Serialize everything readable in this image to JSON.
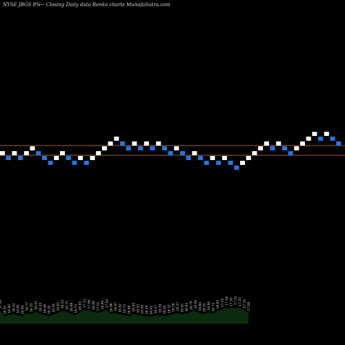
{
  "header": {
    "text": "NYSE JBGS 8%~  Closing Daily data  Renko  charts MunafaSutra.com"
  },
  "chart_data": {
    "type": "renko",
    "title": "",
    "up_color": "#ffffff",
    "down_color": "#1e78e6",
    "line_color": "#a0642d",
    "volume_color": "#0c2a0c",
    "brick_size": 1,
    "bricks": [
      {
        "level": 0,
        "dir": "up"
      },
      {
        "level": -1,
        "dir": "down"
      },
      {
        "level": 0,
        "dir": "up"
      },
      {
        "level": -1,
        "dir": "down"
      },
      {
        "level": 0,
        "dir": "up"
      },
      {
        "level": 1,
        "dir": "up"
      },
      {
        "level": 0,
        "dir": "down"
      },
      {
        "level": -1,
        "dir": "down"
      },
      {
        "level": -2,
        "dir": "down"
      },
      {
        "level": -1,
        "dir": "up"
      },
      {
        "level": 0,
        "dir": "up"
      },
      {
        "level": -1,
        "dir": "down"
      },
      {
        "level": -2,
        "dir": "down"
      },
      {
        "level": -1,
        "dir": "up"
      },
      {
        "level": -2,
        "dir": "down"
      },
      {
        "level": -1,
        "dir": "up"
      },
      {
        "level": 0,
        "dir": "up"
      },
      {
        "level": 1,
        "dir": "up"
      },
      {
        "level": 2,
        "dir": "up"
      },
      {
        "level": 3,
        "dir": "up"
      },
      {
        "level": 2,
        "dir": "down"
      },
      {
        "level": 1,
        "dir": "down"
      },
      {
        "level": 2,
        "dir": "up"
      },
      {
        "level": 1,
        "dir": "down"
      },
      {
        "level": 2,
        "dir": "up"
      },
      {
        "level": 1,
        "dir": "down"
      },
      {
        "level": 2,
        "dir": "up"
      },
      {
        "level": 1,
        "dir": "down"
      },
      {
        "level": 0,
        "dir": "down"
      },
      {
        "level": 1,
        "dir": "up"
      },
      {
        "level": 0,
        "dir": "down"
      },
      {
        "level": -1,
        "dir": "down"
      },
      {
        "level": 0,
        "dir": "up"
      },
      {
        "level": -1,
        "dir": "down"
      },
      {
        "level": -2,
        "dir": "down"
      },
      {
        "level": -1,
        "dir": "up"
      },
      {
        "level": -2,
        "dir": "down"
      },
      {
        "level": -1,
        "dir": "up"
      },
      {
        "level": -2,
        "dir": "down"
      },
      {
        "level": -3,
        "dir": "down"
      },
      {
        "level": -2,
        "dir": "up"
      },
      {
        "level": -1,
        "dir": "up"
      },
      {
        "level": 0,
        "dir": "up"
      },
      {
        "level": 1,
        "dir": "up"
      },
      {
        "level": 2,
        "dir": "up"
      },
      {
        "level": 1,
        "dir": "down"
      },
      {
        "level": 2,
        "dir": "up"
      },
      {
        "level": 1,
        "dir": "down"
      },
      {
        "level": 0,
        "dir": "down"
      },
      {
        "level": 1,
        "dir": "up"
      },
      {
        "level": 2,
        "dir": "up"
      },
      {
        "level": 3,
        "dir": "up"
      },
      {
        "level": 4,
        "dir": "up"
      },
      {
        "level": 3,
        "dir": "down"
      },
      {
        "level": 4,
        "dir": "up"
      },
      {
        "level": 3,
        "dir": "down"
      },
      {
        "level": 2,
        "dir": "down"
      }
    ],
    "reference_lines": [
      2,
      0
    ],
    "volume": [
      {
        "label": "17.14",
        "v": 0.55
      },
      {
        "label": "16.91",
        "v": 0.3
      },
      {
        "label": "16.80",
        "v": 0.35
      },
      {
        "label": "16.92",
        "v": 0.4
      },
      {
        "label": "16.81",
        "v": 0.35
      },
      {
        "label": "16.64",
        "v": 0.3
      },
      {
        "label": "16.77",
        "v": 0.45
      },
      {
        "label": "16.55",
        "v": 0.4
      },
      {
        "label": "16.42",
        "v": 0.5
      },
      {
        "label": "16.35",
        "v": 0.42
      },
      {
        "label": "16.48",
        "v": 0.35
      },
      {
        "label": "16.30",
        "v": 0.3
      },
      {
        "label": "16.44",
        "v": 0.38
      },
      {
        "label": "16.61",
        "v": 0.45
      },
      {
        "label": "16.52",
        "v": 0.55
      },
      {
        "label": "16.70",
        "v": 0.5
      },
      {
        "label": "16.88",
        "v": 0.42
      },
      {
        "label": "16.73",
        "v": 0.35
      },
      {
        "label": "16.95",
        "v": 0.48
      },
      {
        "label": "17.12",
        "v": 0.6
      },
      {
        "label": "17.06",
        "v": 0.55
      },
      {
        "label": "16.98",
        "v": 0.5
      },
      {
        "label": "17.01",
        "v": 0.45
      },
      {
        "label": "16.90",
        "v": 0.52
      },
      {
        "label": "17.04",
        "v": 0.58
      },
      {
        "label": "16.86",
        "v": 0.4
      },
      {
        "label": "16.97",
        "v": 0.45
      },
      {
        "label": "16.82",
        "v": 0.38
      },
      {
        "label": "16.75",
        "v": 0.35
      },
      {
        "label": "16.68",
        "v": 0.3
      },
      {
        "label": "16.60",
        "v": 0.42
      },
      {
        "label": "16.52",
        "v": 0.36
      },
      {
        "label": "16.58",
        "v": 0.32
      },
      {
        "label": "16.49",
        "v": 0.3
      },
      {
        "label": "16.41",
        "v": 0.28
      },
      {
        "label": "16.47",
        "v": 0.33
      },
      {
        "label": "16.39",
        "v": 0.36
      },
      {
        "label": "16.45",
        "v": 0.3
      },
      {
        "label": "16.32",
        "v": 0.34
      },
      {
        "label": "16.28",
        "v": 0.4
      },
      {
        "label": "16.37",
        "v": 0.45
      },
      {
        "label": "16.50",
        "v": 0.38
      },
      {
        "label": "16.63",
        "v": 0.42
      },
      {
        "label": "16.79",
        "v": 0.5
      },
      {
        "label": "16.90",
        "v": 0.55
      },
      {
        "label": "16.84",
        "v": 0.45
      },
      {
        "label": "16.93",
        "v": 0.4
      },
      {
        "label": "16.80",
        "v": 0.48
      },
      {
        "label": "16.72",
        "v": 0.42
      },
      {
        "label": "16.85",
        "v": 0.55
      },
      {
        "label": "17.02",
        "v": 0.62
      },
      {
        "label": "17.18",
        "v": 0.7
      },
      {
        "label": "17.30",
        "v": 0.65
      },
      {
        "label": "17.21",
        "v": 0.72
      },
      {
        "label": "17.33",
        "v": 0.66
      },
      {
        "label": "17.15",
        "v": 0.58
      },
      {
        "label": "17.08",
        "v": 0.45
      }
    ]
  }
}
